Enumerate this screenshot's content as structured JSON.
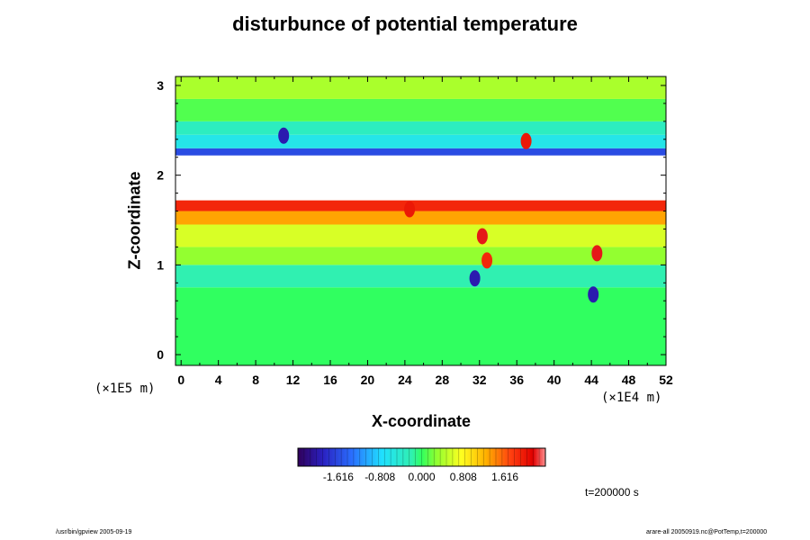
{
  "chart_data": {
    "type": "heatmap",
    "title": "disturbunce of potential temperature",
    "xlabel": "X-coordinate",
    "ylabel": "Z-coordinate",
    "x_unit": "(×1E4 m)",
    "y_unit": "(×1E5 m)",
    "x_ticks": [
      0,
      4,
      8,
      12,
      16,
      20,
      24,
      28,
      32,
      36,
      40,
      44,
      48,
      52
    ],
    "y_ticks": [
      0,
      1,
      2,
      3
    ],
    "xlim": [
      -0.6,
      52
    ],
    "ylim": [
      -0.12,
      3.1
    ],
    "colorbar": {
      "min": -2.4,
      "max": 2.4,
      "tick_values": [
        -1.616,
        -0.808,
        0.0,
        0.808,
        1.616
      ],
      "tick_labels": [
        "-1.616",
        "-0.808",
        "0.000",
        "0.808",
        "1.616"
      ]
    },
    "bands": [
      {
        "z": [
          -0.12,
          0.75
        ],
        "value": 0.0
      },
      {
        "z": [
          0.75,
          1.0
        ],
        "value": -0.2
      },
      {
        "z": [
          1.0,
          1.2
        ],
        "value": 0.3
      },
      {
        "z": [
          1.2,
          1.45
        ],
        "value": 0.6
      },
      {
        "z": [
          1.45,
          1.6
        ],
        "value": 1.3
      },
      {
        "z": [
          1.6,
          1.72
        ],
        "value": 1.9
      },
      {
        "z": [
          1.72,
          2.05
        ],
        "value": null
      },
      {
        "z": [
          2.05,
          2.22
        ],
        "value": null
      },
      {
        "z": [
          2.22,
          2.3
        ],
        "value": -1.6
      },
      {
        "z": [
          2.3,
          2.45
        ],
        "value": -0.6
      },
      {
        "z": [
          2.45,
          2.6
        ],
        "value": -0.3
      },
      {
        "z": [
          2.6,
          2.85
        ],
        "value": 0.1
      },
      {
        "z": [
          2.85,
          3.1
        ],
        "value": 0.4
      }
    ],
    "anomalies": [
      {
        "x": 32.3,
        "z": 1.32,
        "value": 2.2
      },
      {
        "x": 32.8,
        "z": 1.05,
        "value": 1.9
      },
      {
        "x": 31.5,
        "z": 0.85,
        "value": -2.0
      },
      {
        "x": 44.6,
        "z": 1.13,
        "value": 2.2
      },
      {
        "x": 44.2,
        "z": 0.67,
        "value": -2.0
      },
      {
        "x": 24.5,
        "z": 1.62,
        "value": 2.0
      },
      {
        "x": 11.0,
        "z": 2.44,
        "value": -2.0
      },
      {
        "x": 37.0,
        "z": 2.38,
        "value": 2.0
      }
    ],
    "timestamp": "t=200000 s"
  },
  "footer": {
    "left": "/usr/bin/gpview 2005-09-19",
    "right": "arare-all 20050919.nc@PotTemp,t=200000"
  }
}
